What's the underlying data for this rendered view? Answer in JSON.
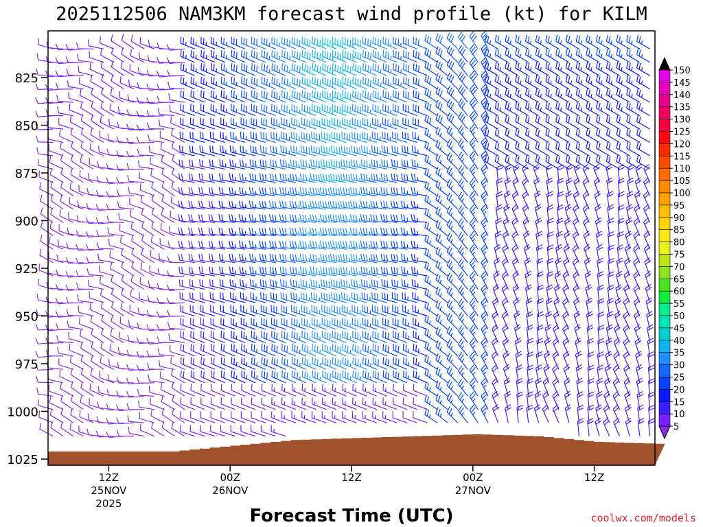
{
  "chart_data": {
    "type": "wind-barb-profile",
    "title": "2025112506 NAM3KM forecast wind profile (kt) for KILM",
    "xlabel": "Forecast Time (UTC)",
    "ylabel": "",
    "credit": "coolwx.com/models",
    "y_axis": {
      "unit": "hPa",
      "ylim": [
        1025,
        805
      ],
      "ticks": [
        "825",
        "850",
        "875",
        "900",
        "925",
        "950",
        "975",
        "1000",
        "1025"
      ]
    },
    "x_axis": {
      "unit": "hours since 2025-11-25 06Z",
      "xlim": [
        0,
        60
      ],
      "ticks": [
        {
          "hour": 6,
          "label": "12Z",
          "date": "25NOV",
          "year": "2025"
        },
        {
          "hour": 18,
          "label": "00Z",
          "date": "26NOV",
          "year": ""
        },
        {
          "hour": 30,
          "label": "12Z",
          "date": "",
          "year": ""
        },
        {
          "hour": 42,
          "label": "00Z",
          "date": "27NOV",
          "year": ""
        },
        {
          "hour": 54,
          "label": "12Z",
          "date": "",
          "year": ""
        }
      ]
    },
    "colorbar": {
      "unit": "kt",
      "levels": [
        5,
        10,
        15,
        20,
        25,
        30,
        35,
        40,
        45,
        50,
        55,
        60,
        65,
        70,
        75,
        80,
        85,
        90,
        95,
        100,
        105,
        110,
        115,
        120,
        125,
        130,
        135,
        140,
        145,
        150
      ],
      "colors": [
        "#8a2be2",
        "#7b1fff",
        "#3a1fff",
        "#0a1aff",
        "#0044ff",
        "#1469ff",
        "#1e90ff",
        "#0fb2f0",
        "#00d2d2",
        "#00e6b4",
        "#00ee8c",
        "#10ec3c",
        "#4ce41c",
        "#8ae61a",
        "#bce81a",
        "#ebf219",
        "#fae614",
        "#ffd400",
        "#ffbe00",
        "#ffa300",
        "#ff8b00",
        "#ff6e00",
        "#ff4c00",
        "#ff2a00",
        "#ff0a14",
        "#f8003c",
        "#f20064",
        "#ea0090",
        "#e600b8",
        "#e600e6"
      ]
    },
    "terrain": {
      "unit": "hPa",
      "color": "#a0522d",
      "hours": [
        0,
        6,
        12,
        18,
        24,
        30,
        36,
        42,
        48,
        54,
        60
      ],
      "surface_pressure": [
        1021,
        1021,
        1021,
        1018,
        1015,
        1014,
        1013,
        1012,
        1013,
        1016,
        1017
      ]
    },
    "wind_field": {
      "description_levels_hpa": [
        810,
        1020
      ],
      "barb_columns": 60,
      "barb_rows": 31,
      "regimes": [
        {
          "hours": [
            0,
            14
          ],
          "levels": "all",
          "direction": "W to NW",
          "speed_kt": [
            5,
            15
          ]
        },
        {
          "hours": [
            14,
            38
          ],
          "levels": "above 900",
          "direction": "WNW",
          "speed_kt": [
            20,
            45
          ]
        },
        {
          "hours": [
            30,
            38
          ],
          "levels": "900-970",
          "direction": "W",
          "speed_kt": [
            30,
            45
          ]
        },
        {
          "hours": [
            44,
            60
          ],
          "levels": "below 880",
          "direction": "N to NW",
          "speed_kt": [
            15,
            30
          ]
        }
      ]
    }
  }
}
